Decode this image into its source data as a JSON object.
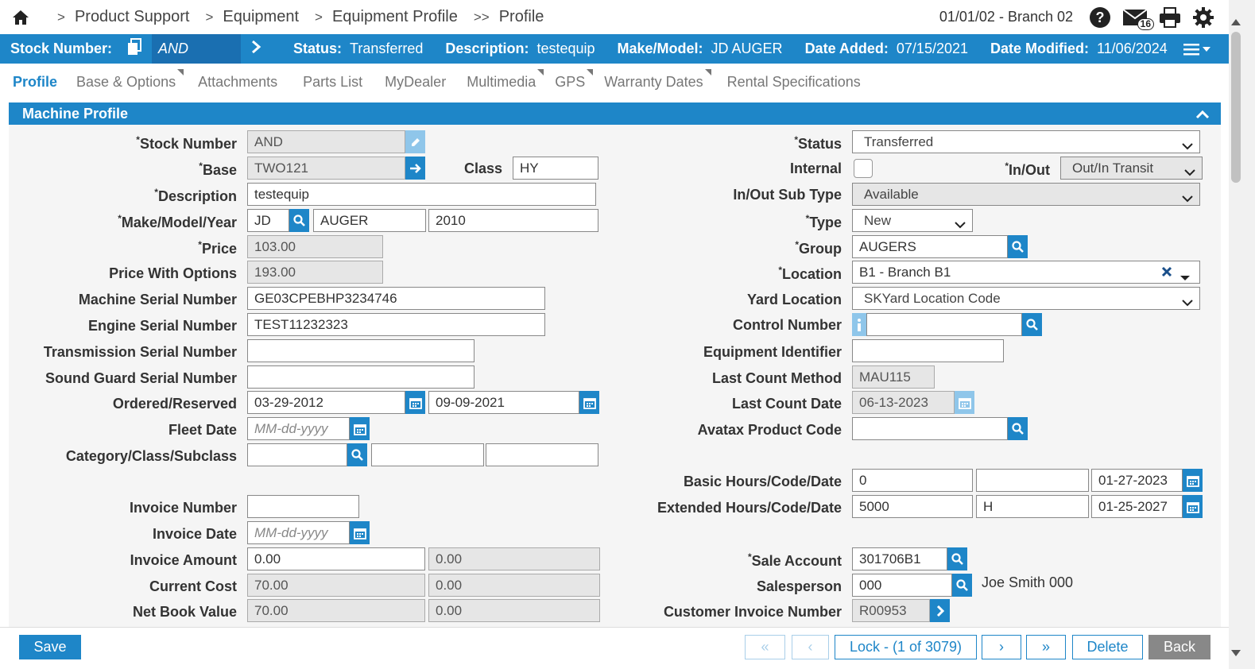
{
  "breadcrumb": {
    "items": [
      "Product Support",
      "Equipment",
      "Equipment Profile",
      "Profile"
    ],
    "seps": [
      ">",
      ">",
      ">",
      ">>"
    ]
  },
  "topright": {
    "branch": "01/01/02 - Branch 02",
    "mail_count": "16"
  },
  "header": {
    "stock_label": "Stock Number:",
    "stock_value": "AND",
    "status_label": "Status:",
    "status_value": "Transferred",
    "desc_label": "Description:",
    "desc_value": "testequip",
    "make_label": "Make/Model:",
    "make_value": "JD AUGER",
    "added_label": "Date Added:",
    "added_value": "07/15/2021",
    "modified_label": "Date Modified:",
    "modified_value": "11/06/2024"
  },
  "tabs": [
    "Profile",
    "Base & Options",
    "Attachments",
    "Parts List",
    "MyDealer",
    "Multimedia",
    "GPS",
    "Warranty Dates",
    "Rental Specifications"
  ],
  "section": {
    "title": "Machine Profile"
  },
  "left": {
    "stock_number": {
      "label": "Stock Number",
      "value": "AND"
    },
    "base": {
      "label": "Base",
      "value": "TWO121"
    },
    "class": {
      "label": "Class",
      "value": "HY"
    },
    "description": {
      "label": "Description",
      "value": "testequip"
    },
    "make_model_year": {
      "label": "Make/Model/Year",
      "make": "JD",
      "model": "AUGER",
      "year": "2010"
    },
    "price": {
      "label": "Price",
      "value": "103.00"
    },
    "price_with_options": {
      "label": "Price With Options",
      "value": "193.00"
    },
    "machine_serial": {
      "label": "Machine Serial Number",
      "value": "GE03CPEBHP3234746"
    },
    "engine_serial": {
      "label": "Engine Serial Number",
      "value": "TEST11232323"
    },
    "transmission_serial": {
      "label": "Transmission Serial Number",
      "value": ""
    },
    "sound_guard_serial": {
      "label": "Sound Guard Serial Number",
      "value": ""
    },
    "ordered_reserved": {
      "label": "Ordered/Reserved",
      "ordered": "03-29-2012",
      "reserved": "09-09-2021"
    },
    "fleet_date": {
      "label": "Fleet Date",
      "placeholder": "MM-dd-yyyy"
    },
    "category": {
      "label": "Category/Class/Subclass"
    },
    "invoice_number": {
      "label": "Invoice Number",
      "value": ""
    },
    "invoice_date": {
      "label": "Invoice Date",
      "placeholder": "MM-dd-yyyy"
    },
    "invoice_amount": {
      "label": "Invoice Amount",
      "value1": "0.00",
      "value2": "0.00"
    },
    "current_cost": {
      "label": "Current Cost",
      "value1": "70.00",
      "value2": "0.00"
    },
    "net_book_value": {
      "label": "Net Book Value",
      "value1": "70.00",
      "value2": "0.00"
    }
  },
  "right": {
    "status": {
      "label": "Status",
      "value": "Transferred"
    },
    "internal": {
      "label": "Internal"
    },
    "in_out": {
      "label": "In/Out",
      "value": "Out/In Transit"
    },
    "in_out_sub_type": {
      "label": "In/Out Sub Type",
      "value": "Available"
    },
    "type": {
      "label": "Type",
      "value": "New"
    },
    "group": {
      "label": "Group",
      "value": "AUGERS"
    },
    "location": {
      "label": "Location",
      "value": "B1 - Branch B1"
    },
    "yard_location": {
      "label": "Yard Location",
      "value": "SKYard Location Code"
    },
    "control_number": {
      "label": "Control Number",
      "value": ""
    },
    "equipment_identifier": {
      "label": "Equipment Identifier",
      "value": ""
    },
    "last_count_method": {
      "label": "Last Count Method",
      "value": "MAU115"
    },
    "last_count_date": {
      "label": "Last Count Date",
      "value": "06-13-2023"
    },
    "avatax": {
      "label": "Avatax Product Code",
      "value": ""
    },
    "basic_hours": {
      "label": "Basic Hours/Code/Date",
      "hours": "0",
      "code": "",
      "date": "01-27-2023"
    },
    "extended_hours": {
      "label": "Extended Hours/Code/Date",
      "hours": "5000",
      "code": "H",
      "date": "01-25-2027"
    },
    "sale_account": {
      "label": "Sale Account",
      "value": "301706B1"
    },
    "salesperson": {
      "label": "Salesperson",
      "value": "000",
      "name": "Joe Smith 000"
    },
    "customer_invoice": {
      "label": "Customer Invoice Number",
      "value": "R00953"
    }
  },
  "footer": {
    "save": "Save",
    "first": "«",
    "prev": "‹",
    "lock": "Lock - (1 of 3079)",
    "next": "›",
    "last": "»",
    "delete": "Delete",
    "back": "Back"
  },
  "colors": {
    "primary": "#1e86c8",
    "header_field": "#1a6fb1"
  }
}
